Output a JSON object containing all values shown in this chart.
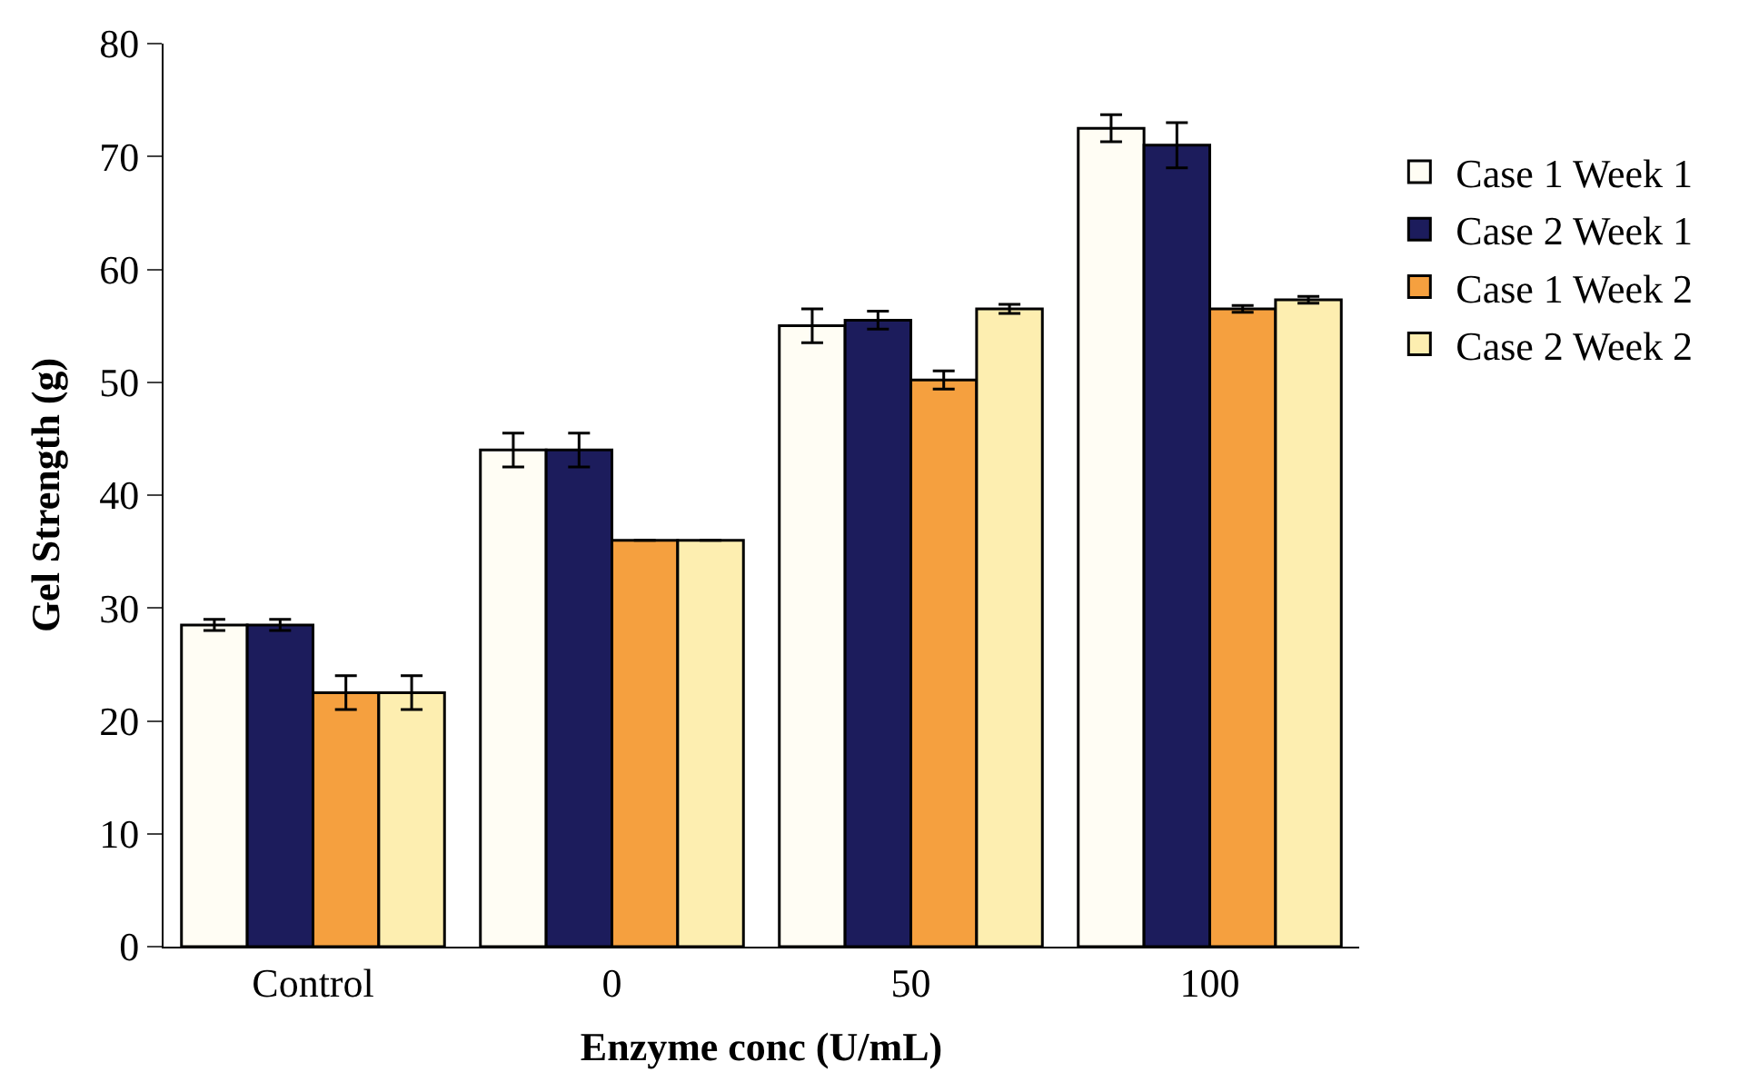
{
  "chart_data": {
    "type": "bar",
    "xlabel": "Enzyme conc (U/mL)",
    "ylabel": "Gel Strength (g)",
    "categories": [
      "Control",
      "0",
      "50",
      "100"
    ],
    "series": [
      {
        "name": "Case 1 Week 1",
        "color": "#fffdf4",
        "values": [
          28.5,
          44,
          55,
          72.5
        ],
        "errors": [
          0.5,
          1.5,
          1.5,
          1.2
        ]
      },
      {
        "name": "Case 2 Week 1",
        "color": "#1c1c5c",
        "values": [
          28.5,
          44,
          55.5,
          71
        ],
        "errors": [
          0.5,
          1.5,
          0.8,
          2
        ]
      },
      {
        "name": "Case 1 Week 2",
        "color": "#f5a03f",
        "values": [
          22.5,
          36,
          50.2,
          56.5
        ],
        "errors": [
          1.5,
          null,
          0.8,
          0.3
        ]
      },
      {
        "name": "Case 2 Week 2",
        "color": "#fdeeb0",
        "values": [
          22.5,
          36,
          56.5,
          57.3
        ],
        "errors": [
          1.5,
          null,
          0.4,
          0.3
        ]
      }
    ],
    "ylim": [
      0,
      80
    ],
    "yticks": [
      0,
      10,
      20,
      30,
      40,
      50,
      60,
      70,
      80
    ],
    "legend": "top right"
  }
}
